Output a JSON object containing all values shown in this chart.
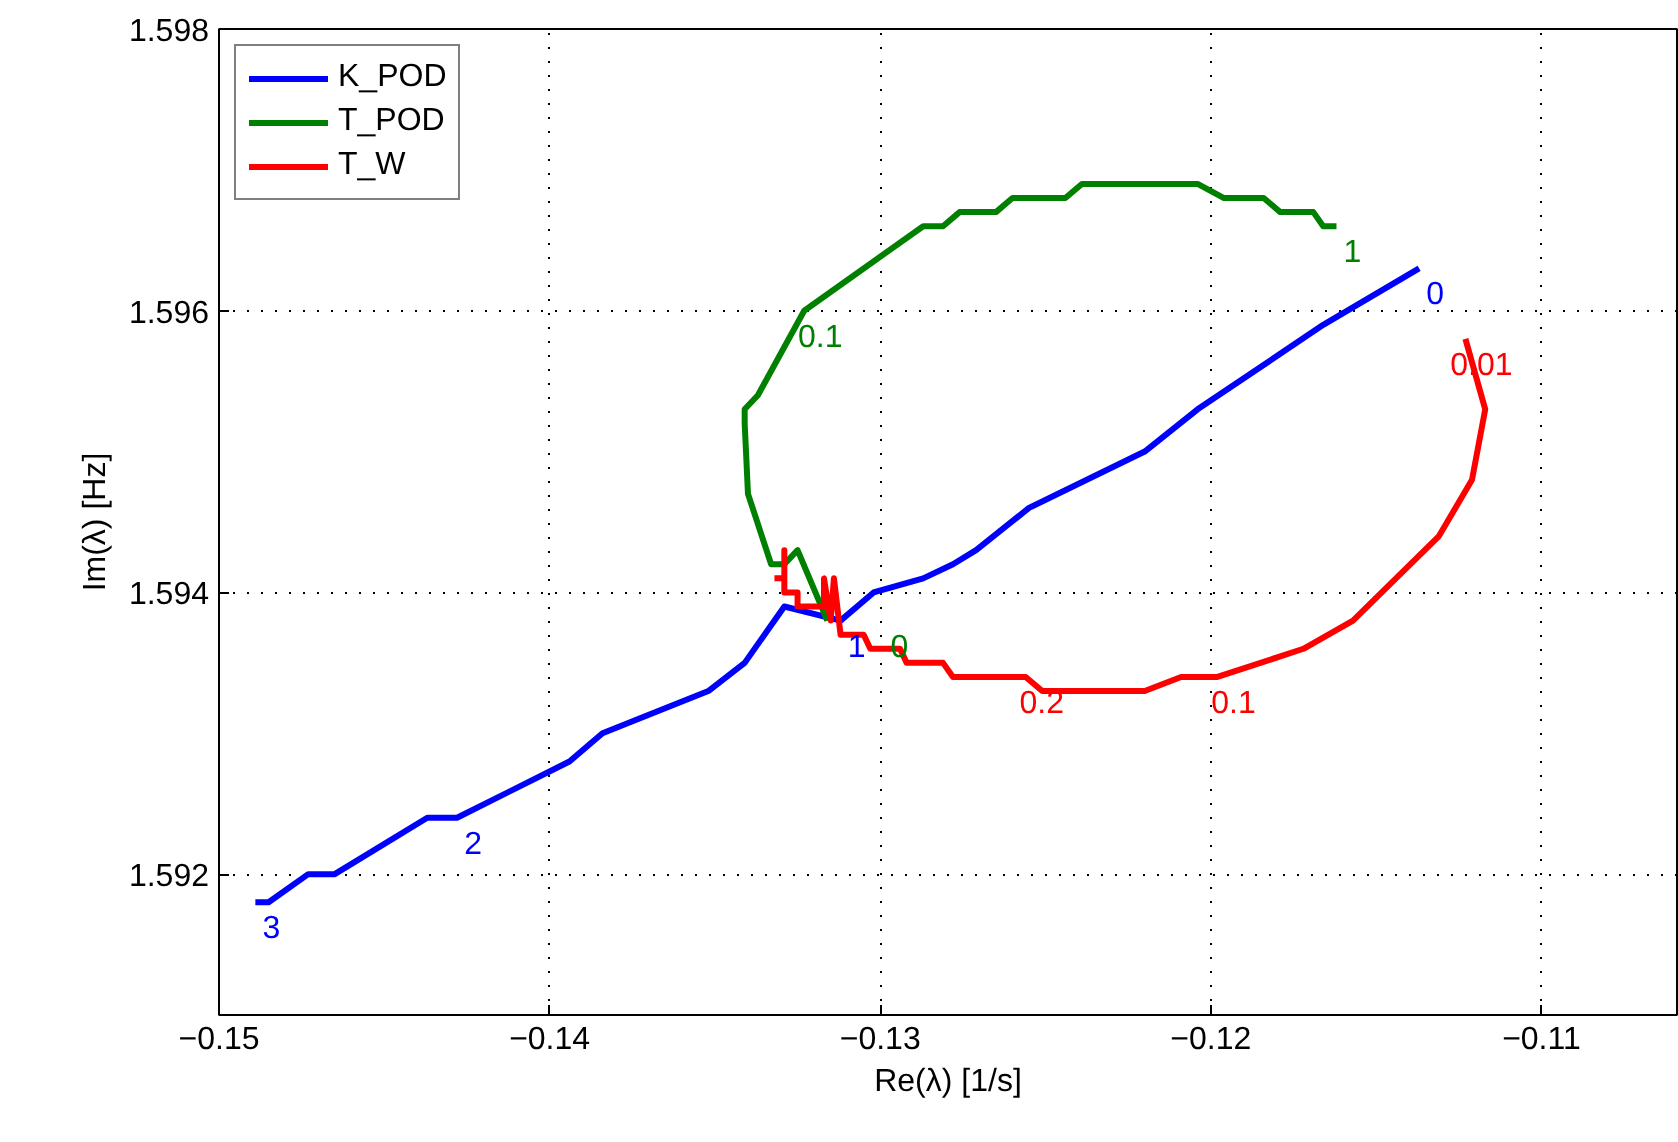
{
  "chart_data": {
    "type": "line",
    "xlabel": "Re(λ) [1/s]",
    "ylabel": "Im(λ) [Hz]",
    "xlim": [
      -0.15,
      -0.1059
    ],
    "ylim": [
      1.591,
      1.598
    ],
    "xticks": [
      {
        "value": -0.15,
        "label": "−0.15"
      },
      {
        "value": -0.14,
        "label": "−0.14"
      },
      {
        "value": -0.13,
        "label": "−0.13"
      },
      {
        "value": -0.12,
        "label": "−0.12"
      },
      {
        "value": -0.11,
        "label": "−0.11"
      }
    ],
    "yticks": [
      1.592,
      1.594,
      1.596,
      1.598
    ],
    "annotations": [
      {
        "text": "0",
        "x": -0.1137,
        "y": 1.5963
      },
      {
        "text": "1",
        "x": -0.1312,
        "y": 1.5938
      },
      {
        "text": "2",
        "x": -0.1428,
        "y": 1.5924
      },
      {
        "text": "3",
        "x": -0.1489,
        "y": 1.5918
      },
      {
        "text": "1",
        "x": -0.1162,
        "y": 1.5966
      },
      {
        "text": "0.1",
        "x": -0.1323,
        "y": 1.596
      },
      {
        "text": "0",
        "x": -0.1316,
        "y": 1.5938
      },
      {
        "text": "0.01",
        "x": -0.1123,
        "y": 1.5958
      },
      {
        "text": "0.2",
        "x": -0.1256,
        "y": 1.5934
      },
      {
        "text": "0.1",
        "x": -0.1198,
        "y": 1.5934
      }
    ],
    "grid": true,
    "legend": "top left",
    "line_style": "solid",
    "marker": "none",
    "series": [
      {
        "name": "K_POD",
        "color": "#0000ff",
        "x": [
          -0.1137,
          -0.1166,
          -0.1204,
          -0.122,
          -0.1255,
          -0.1271,
          -0.1278,
          -0.1287,
          -0.1302,
          -0.1312,
          -0.1329,
          -0.1341,
          -0.1352,
          -0.1384,
          -0.1394,
          -0.1428,
          -0.1437,
          -0.1465,
          -0.1473,
          -0.1485,
          -0.1489
        ],
        "values": [
          1.5963,
          1.5959,
          1.5953,
          1.595,
          1.5946,
          1.5943,
          1.5942,
          1.5941,
          1.594,
          1.5938,
          1.5939,
          1.5935,
          1.5933,
          1.593,
          1.5928,
          1.5924,
          1.5924,
          1.592,
          1.592,
          1.5918,
          1.5918
        ]
      },
      {
        "name": "T_POD",
        "color": "#008000",
        "x": [
          -0.1316,
          -0.1325,
          -0.1329,
          -0.1333,
          -0.134,
          -0.1341,
          -0.1341,
          -0.1337,
          -0.1323,
          -0.1287,
          -0.1281,
          -0.1276,
          -0.1265,
          -0.126,
          -0.1244,
          -0.1239,
          -0.1204,
          -0.1196,
          -0.1184,
          -0.1179,
          -0.1169,
          -0.1166,
          -0.1162
        ],
        "values": [
          1.5938,
          1.5943,
          1.5942,
          1.5942,
          1.5947,
          1.5952,
          1.5953,
          1.5954,
          1.596,
          1.5966,
          1.5966,
          1.5967,
          1.5967,
          1.5968,
          1.5968,
          1.5969,
          1.5969,
          1.5968,
          1.5968,
          1.5967,
          1.5967,
          1.5966,
          1.5966
        ]
      },
      {
        "name": "T_W",
        "color": "#ff0000",
        "x": [
          -0.1123,
          -0.1117,
          -0.1121,
          -0.1131,
          -0.1157,
          -0.1172,
          -0.1198,
          -0.1209,
          -0.122,
          -0.1251,
          -0.1256,
          -0.1278,
          -0.1281,
          -0.1292,
          -0.1294,
          -0.1303,
          -0.1305,
          -0.1312,
          -0.1314,
          -0.1315,
          -0.1317,
          -0.1317,
          -0.1325,
          -0.1325,
          -0.1329,
          -0.1329,
          -0.1329,
          -0.1332
        ],
        "values": [
          1.5958,
          1.5953,
          1.5948,
          1.5944,
          1.5938,
          1.5936,
          1.5934,
          1.5934,
          1.5933,
          1.5933,
          1.5934,
          1.5934,
          1.5935,
          1.5935,
          1.5936,
          1.5936,
          1.5937,
          1.5937,
          1.5941,
          1.5938,
          1.5941,
          1.5939,
          1.5939,
          1.594,
          1.594,
          1.5943,
          1.5941,
          1.5941
        ]
      }
    ]
  }
}
